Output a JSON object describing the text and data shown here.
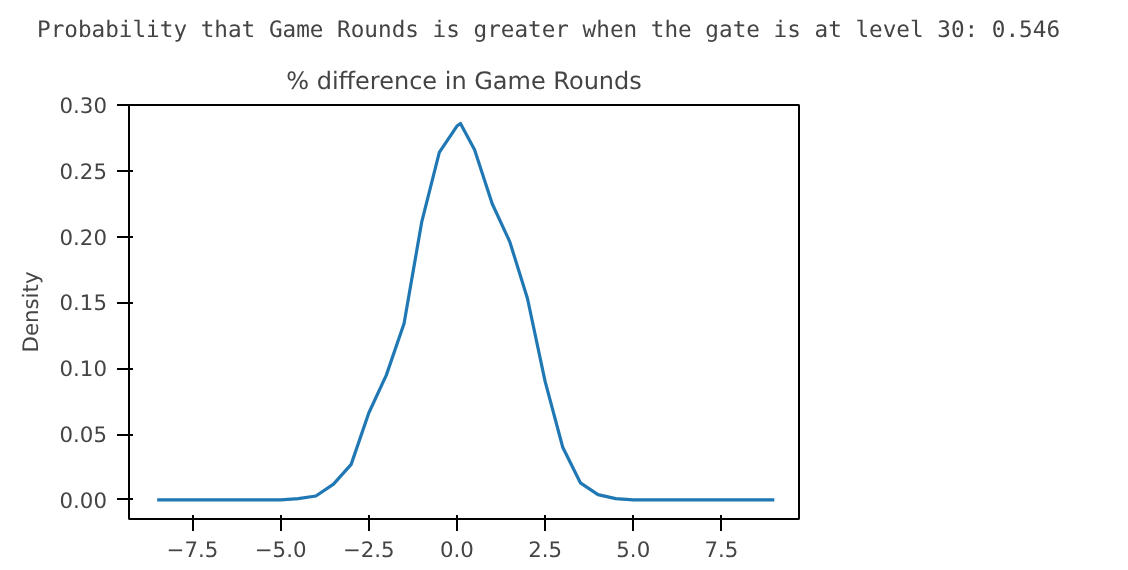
{
  "chart_data": {
    "type": "line",
    "title": "% difference in Game Rounds",
    "ylabel": "Density",
    "annotations": [
      "Probability that Game Rounds is greater when the gate is at level 30: 0.546"
    ],
    "x": [
      -8.5,
      -7,
      -6,
      -5,
      -4.5,
      -4,
      -3.5,
      -3,
      -2.5,
      -2,
      -1.5,
      -1,
      -0.5,
      0,
      0.1,
      0.5,
      1,
      1.5,
      2,
      2.5,
      3,
      3.5,
      4,
      4.5,
      5,
      6,
      7,
      9
    ],
    "series": [
      {
        "color": "#1f77b4",
        "values": [
          0,
          0,
          0,
          0,
          0.001,
          0.003,
          0.012,
          0.027,
          0.066,
          0.095,
          0.134,
          0.211,
          0.264,
          0.284,
          0.286,
          0.266,
          0.225,
          0.196,
          0.153,
          0.09,
          0.04,
          0.013,
          0.004,
          0.001,
          0,
          0,
          0,
          0
        ]
      }
    ],
    "xlim": [
      -9.3,
      9.7
    ],
    "ylim": [
      -0.0145,
      0.3
    ],
    "xticks": [
      {
        "value": -7.5,
        "label": "−7.5"
      },
      {
        "value": -5,
        "label": "−5.0"
      },
      {
        "value": -2.5,
        "label": "−2.5"
      },
      {
        "value": 0,
        "label": "0.0"
      },
      {
        "value": 2.5,
        "label": "2.5"
      },
      {
        "value": 5,
        "label": "5.0"
      },
      {
        "value": 7.5,
        "label": "7.5"
      }
    ],
    "yticks": [
      {
        "value": 0,
        "label": "0.00"
      },
      {
        "value": 0.05,
        "label": "0.05"
      },
      {
        "value": 0.1,
        "label": "0.10"
      },
      {
        "value": 0.15,
        "label": "0.15"
      },
      {
        "value": 0.2,
        "label": "0.20"
      },
      {
        "value": 0.25,
        "label": "0.25"
      },
      {
        "value": 0.3,
        "label": "0.30"
      }
    ],
    "grid": false,
    "line_style": "solid",
    "marker": "none"
  }
}
